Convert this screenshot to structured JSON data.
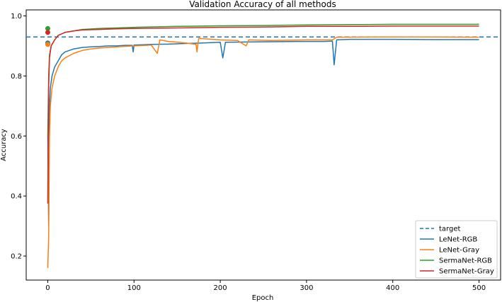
{
  "chart_data": {
    "type": "line",
    "title": "Validation Accuracy of all methods",
    "xlabel": "Epoch",
    "ylabel": "Accuracy",
    "xlim": [
      -25,
      525
    ],
    "ylim": [
      0.12,
      1.02
    ],
    "x_ticks": [
      0,
      100,
      200,
      300,
      400,
      500
    ],
    "x_tick_labels": [
      "0",
      "100",
      "200",
      "300",
      "400",
      "500"
    ],
    "y_ticks": [
      0.2,
      0.4,
      0.6,
      0.8,
      1.0
    ],
    "y_tick_labels": [
      "0.2",
      "0.4",
      "0.6",
      "0.8",
      "1.0"
    ],
    "grid": false,
    "legend_position": "bottom-right",
    "target": {
      "name": "target",
      "value": 0.93,
      "color": "#1f77b4",
      "style": "dashed"
    },
    "series": [
      {
        "name": "LeNet-RGB",
        "color": "#1f77b4",
        "final_marker": 0.91,
        "points": [
          [
            0,
            0.6
          ],
          [
            1,
            0.3
          ],
          [
            2,
            0.7
          ],
          [
            3,
            0.76
          ],
          [
            5,
            0.8
          ],
          [
            8,
            0.83
          ],
          [
            12,
            0.85
          ],
          [
            16,
            0.87
          ],
          [
            20,
            0.88
          ],
          [
            30,
            0.89
          ],
          [
            40,
            0.895
          ],
          [
            50,
            0.897
          ],
          [
            60,
            0.898
          ],
          [
            70,
            0.9
          ],
          [
            80,
            0.9
          ],
          [
            90,
            0.902
          ],
          [
            98,
            0.902
          ],
          [
            99,
            0.88
          ],
          [
            100,
            0.903
          ],
          [
            120,
            0.905
          ],
          [
            140,
            0.906
          ],
          [
            160,
            0.908
          ],
          [
            180,
            0.91
          ],
          [
            200,
            0.912
          ],
          [
            203,
            0.86
          ],
          [
            206,
            0.912
          ],
          [
            230,
            0.913
          ],
          [
            260,
            0.914
          ],
          [
            290,
            0.915
          ],
          [
            320,
            0.915
          ],
          [
            330,
            0.916
          ],
          [
            332,
            0.837
          ],
          [
            335,
            0.92
          ],
          [
            350,
            0.922
          ],
          [
            400,
            0.922
          ],
          [
            450,
            0.921
          ],
          [
            500,
            0.921
          ]
        ]
      },
      {
        "name": "LeNet-Gray",
        "color": "#ff7f0e",
        "final_marker": 0.905,
        "points": [
          [
            0,
            0.16
          ],
          [
            1,
            0.26
          ],
          [
            2,
            0.6
          ],
          [
            3,
            0.7
          ],
          [
            5,
            0.76
          ],
          [
            8,
            0.8
          ],
          [
            12,
            0.83
          ],
          [
            16,
            0.85
          ],
          [
            20,
            0.86
          ],
          [
            30,
            0.875
          ],
          [
            40,
            0.885
          ],
          [
            50,
            0.89
          ],
          [
            60,
            0.893
          ],
          [
            70,
            0.895
          ],
          [
            80,
            0.897
          ],
          [
            100,
            0.9
          ],
          [
            120,
            0.903
          ],
          [
            127,
            0.875
          ],
          [
            130,
            0.92
          ],
          [
            140,
            0.915
          ],
          [
            160,
            0.91
          ],
          [
            172,
            0.905
          ],
          [
            173,
            0.88
          ],
          [
            175,
            0.925
          ],
          [
            200,
            0.92
          ],
          [
            220,
            0.918
          ],
          [
            230,
            0.9
          ],
          [
            233,
            0.92
          ],
          [
            260,
            0.918
          ],
          [
            300,
            0.92
          ],
          [
            330,
            0.92
          ],
          [
            335,
            0.929
          ],
          [
            400,
            0.93
          ],
          [
            450,
            0.93
          ],
          [
            500,
            0.929
          ]
        ]
      },
      {
        "name": "SermaNet-RGB",
        "color": "#2ca02c",
        "final_marker": 0.958,
        "points": [
          [
            0,
            0.6
          ],
          [
            1,
            0.8
          ],
          [
            2,
            0.87
          ],
          [
            4,
            0.9
          ],
          [
            8,
            0.92
          ],
          [
            12,
            0.935
          ],
          [
            16,
            0.94
          ],
          [
            20,
            0.945
          ],
          [
            30,
            0.95
          ],
          [
            40,
            0.955
          ],
          [
            60,
            0.958
          ],
          [
            80,
            0.96
          ],
          [
            100,
            0.962
          ],
          [
            150,
            0.965
          ],
          [
            200,
            0.967
          ],
          [
            250,
            0.968
          ],
          [
            300,
            0.97
          ],
          [
            350,
            0.971
          ],
          [
            400,
            0.972
          ],
          [
            450,
            0.972
          ],
          [
            500,
            0.972
          ]
        ]
      },
      {
        "name": "SermaNet-Gray",
        "color": "#d62728",
        "final_marker": 0.945,
        "points": [
          [
            0,
            0.375
          ],
          [
            1,
            0.76
          ],
          [
            2,
            0.86
          ],
          [
            4,
            0.9
          ],
          [
            8,
            0.92
          ],
          [
            12,
            0.935
          ],
          [
            16,
            0.94
          ],
          [
            20,
            0.945
          ],
          [
            30,
            0.95
          ],
          [
            40,
            0.953
          ],
          [
            60,
            0.955
          ],
          [
            80,
            0.957
          ],
          [
            100,
            0.958
          ],
          [
            150,
            0.96
          ],
          [
            200,
            0.962
          ],
          [
            250,
            0.963
          ],
          [
            300,
            0.965
          ],
          [
            350,
            0.965
          ],
          [
            400,
            0.966
          ],
          [
            450,
            0.966
          ],
          [
            500,
            0.966
          ]
        ]
      }
    ]
  }
}
